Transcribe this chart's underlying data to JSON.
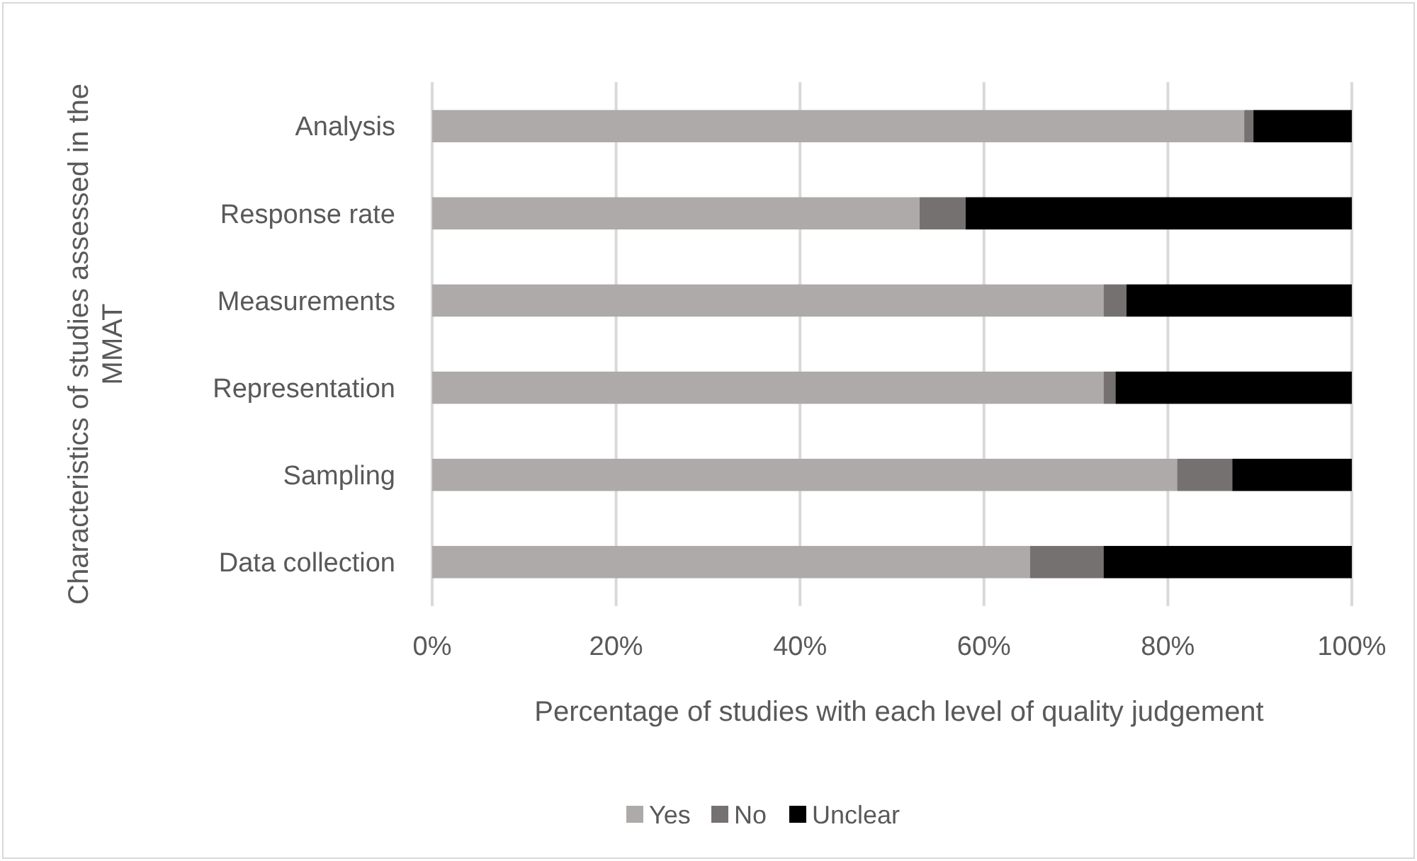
{
  "chart_data": {
    "type": "bar",
    "orientation": "horizontal",
    "stacked": true,
    "xlabel": "Percentage of studies with each level of quality judgement",
    "ylabel": "Characteristics of studies assessed in the MMAT",
    "categories": [
      "Analysis",
      "Response rate",
      "Measurements",
      "Representation",
      "Sampling",
      "Data collection"
    ],
    "series": [
      {
        "name": "Yes",
        "color": "#aeaaaa",
        "values": [
          88.3,
          53,
          73,
          73,
          81,
          65
        ]
      },
      {
        "name": "No",
        "color": "#767171",
        "values": [
          1,
          5,
          2.5,
          1.3,
          6,
          8
        ]
      },
      {
        "name": "Unclear",
        "color": "#000000",
        "values": [
          10.7,
          42,
          24.5,
          25.7,
          13,
          27
        ]
      }
    ],
    "xlim": [
      0,
      100
    ],
    "xticks": [
      {
        "value": 0,
        "label": "0%"
      },
      {
        "value": 20,
        "label": "20%"
      },
      {
        "value": 40,
        "label": "40%"
      },
      {
        "value": 60,
        "label": "60%"
      },
      {
        "value": 80,
        "label": "80%"
      },
      {
        "value": 100,
        "label": "100%"
      }
    ],
    "grid": "x",
    "legend": "bottom"
  }
}
